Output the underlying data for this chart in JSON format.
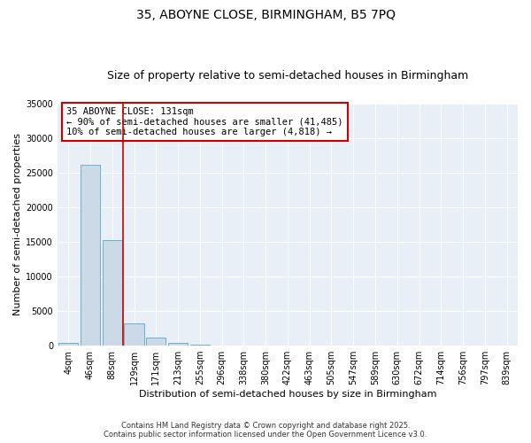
{
  "title_line1": "35, ABOYNE CLOSE, BIRMINGHAM, B5 7PQ",
  "title_line2": "Size of property relative to semi-detached houses in Birmingham",
  "xlabel": "Distribution of semi-detached houses by size in Birmingham",
  "ylabel": "Number of semi-detached properties",
  "bin_labels": [
    "4sqm",
    "46sqm",
    "88sqm",
    "129sqm",
    "171sqm",
    "213sqm",
    "255sqm",
    "296sqm",
    "338sqm",
    "380sqm",
    "422sqm",
    "463sqm",
    "505sqm",
    "547sqm",
    "589sqm",
    "630sqm",
    "672sqm",
    "714sqm",
    "756sqm",
    "797sqm",
    "839sqm"
  ],
  "bar_values": [
    350,
    26100,
    15200,
    3200,
    1100,
    450,
    200,
    50,
    0,
    0,
    0,
    0,
    0,
    0,
    0,
    0,
    0,
    0,
    0,
    0,
    0
  ],
  "bar_color": "#ccdae8",
  "bar_edge_color": "#6aaed6",
  "highlight_color": "#cc0000",
  "annotation_title": "35 ABOYNE CLOSE: 131sqm",
  "annotation_line1": "← 90% of semi-detached houses are smaller (41,485)",
  "annotation_line2": "10% of semi-detached houses are larger (4,818) →",
  "annotation_box_color": "#cc0000",
  "ylim": [
    0,
    35000
  ],
  "yticks": [
    0,
    5000,
    10000,
    15000,
    20000,
    25000,
    30000,
    35000
  ],
  "plot_bg_color": "#e8eff6",
  "footer_line1": "Contains HM Land Registry data © Crown copyright and database right 2025.",
  "footer_line2": "Contains public sector information licensed under the Open Government Licence v3.0.",
  "title_fontsize": 10,
  "subtitle_fontsize": 9,
  "axis_label_fontsize": 8,
  "tick_fontsize": 7,
  "annotation_fontsize": 7.5,
  "footer_fontsize": 6
}
